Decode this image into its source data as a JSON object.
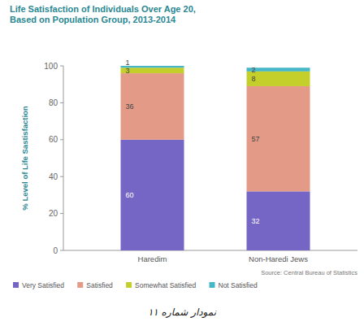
{
  "chart_data": {
    "type": "bar",
    "stacked": true,
    "data_labels": true,
    "legend": "bottom",
    "grid": false,
    "title": "Life Satisfaction of Individuals Over Age 20, Based on Population Group, 2013-2014",
    "y_label": "% Level of Life Sastisfaction",
    "categories": [
      "Haredim",
      "Non-Haredi Jews"
    ],
    "series": [
      {
        "name": "Very Satisfied",
        "color": "#7566c6",
        "values": [
          60,
          32
        ]
      },
      {
        "name": "Satisfied",
        "color": "#e39b87",
        "values": [
          36,
          57
        ]
      },
      {
        "name": "Somewhat Satisfied",
        "color": "#c5cf2b",
        "values": [
          3,
          8
        ]
      },
      {
        "name": "Not Satisfied",
        "color": "#45b7c7",
        "values": [
          1,
          2
        ]
      }
    ],
    "ylim": [
      0,
      100
    ],
    "yticks": [
      0,
      20,
      40,
      60,
      80,
      100
    ],
    "annotations": [
      "Source: Central Bureau of Statistics",
      "نمودار شماره ۱۱"
    ]
  }
}
